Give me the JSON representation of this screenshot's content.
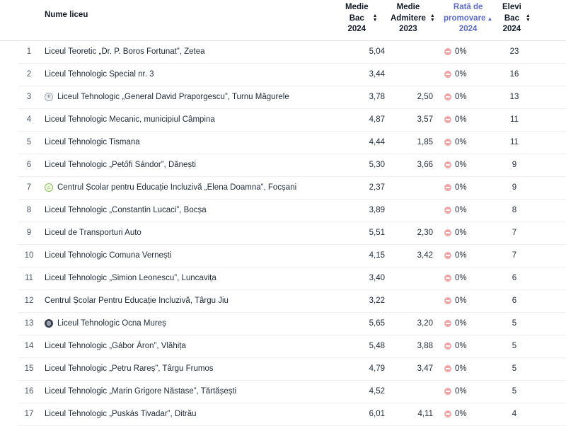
{
  "headers": {
    "name": "Nume liceu",
    "bac_lines": [
      "Medie",
      "Bac",
      "2024"
    ],
    "adm_lines": [
      "Medie",
      "Admitere",
      "2023"
    ],
    "rate_lines": [
      "Rată de",
      "promovare",
      "2024"
    ],
    "students_lines": [
      "Elevi",
      "Bac",
      "2024"
    ]
  },
  "colors": {
    "active_sort": "#5b6bcf",
    "rate_icon": "#f2a5a5"
  },
  "rows": [
    {
      "rank": "1",
      "name": "Liceul Teoretic „Dr. P. Boros Fortunat”, Zetea",
      "icon": "",
      "bac": "5,04",
      "adm": "",
      "rate": "0%",
      "students": "23"
    },
    {
      "rank": "2",
      "name": "Liceul Tehnologic Special nr. 3",
      "icon": "",
      "bac": "3,44",
      "adm": "",
      "rate": "0%",
      "students": "16"
    },
    {
      "rank": "3",
      "name": "Liceul Tehnologic „General David Praporgescu”, Turnu Măgurele",
      "icon": "crest-icon",
      "bac": "3,78",
      "adm": "2,50",
      "rate": "0%",
      "students": "13"
    },
    {
      "rank": "4",
      "name": "Liceul Tehnologic Mecanic, municipiul Câmpina",
      "icon": "",
      "bac": "4,87",
      "adm": "3,57",
      "rate": "0%",
      "students": "11"
    },
    {
      "rank": "5",
      "name": "Liceul Tehnologic Tismana",
      "icon": "",
      "bac": "4,44",
      "adm": "1,85",
      "rate": "0%",
      "students": "11"
    },
    {
      "rank": "6",
      "name": "Liceul Tehnologic „Petőfi Sándor”, Dănești",
      "icon": "",
      "bac": "5,30",
      "adm": "3,66",
      "rate": "0%",
      "students": "9"
    },
    {
      "rank": "7",
      "name": "Centrul Școlar pentru Educație Incluzivă „Elena Doamna”, Focșani",
      "icon": "home-icon",
      "bac": "2,37",
      "adm": "",
      "rate": "0%",
      "students": "9"
    },
    {
      "rank": "8",
      "name": "Liceul Tehnologic „Constantin Lucaci”, Bocșa",
      "icon": "",
      "bac": "3,89",
      "adm": "",
      "rate": "0%",
      "students": "8"
    },
    {
      "rank": "9",
      "name": "Liceul de Transporturi Auto",
      "icon": "",
      "bac": "5,51",
      "adm": "2,30",
      "rate": "0%",
      "students": "7"
    },
    {
      "rank": "10",
      "name": "Liceul Tehnologic Comuna Vernești",
      "icon": "",
      "bac": "4,15",
      "adm": "3,42",
      "rate": "0%",
      "students": "7"
    },
    {
      "rank": "11",
      "name": "Liceul Tehnologic „Simion Leonescu”, Luncavița",
      "icon": "",
      "bac": "3,40",
      "adm": "",
      "rate": "0%",
      "students": "6"
    },
    {
      "rank": "12",
      "name": "Centrul Școlar Pentru Educație Incluzivă, Târgu Jiu",
      "icon": "",
      "bac": "3,22",
      "adm": "",
      "rate": "0%",
      "students": "6"
    },
    {
      "rank": "13",
      "name": "Liceul Tehnologic Ocna Mureș",
      "icon": "globe-icon",
      "bac": "5,65",
      "adm": "3,20",
      "rate": "0%",
      "students": "5"
    },
    {
      "rank": "14",
      "name": "Liceul Tehnologic „Gábor Áron”, Vlăhița",
      "icon": "",
      "bac": "5,48",
      "adm": "3,88",
      "rate": "0%",
      "students": "5"
    },
    {
      "rank": "15",
      "name": "Liceul Tehnologic „Petru Rareș”, Târgu Frumos",
      "icon": "",
      "bac": "4,79",
      "adm": "3,47",
      "rate": "0%",
      "students": "5"
    },
    {
      "rank": "16",
      "name": "Liceul Tehnologic „Marin Grigore Năstase”, Tărtășești",
      "icon": "",
      "bac": "4,52",
      "adm": "",
      "rate": "0%",
      "students": "5"
    },
    {
      "rank": "17",
      "name": "Liceul Tehnologic „Puskás Tivadar”, Ditrău",
      "icon": "",
      "bac": "6,01",
      "adm": "4,11",
      "rate": "0%",
      "students": "4"
    }
  ]
}
